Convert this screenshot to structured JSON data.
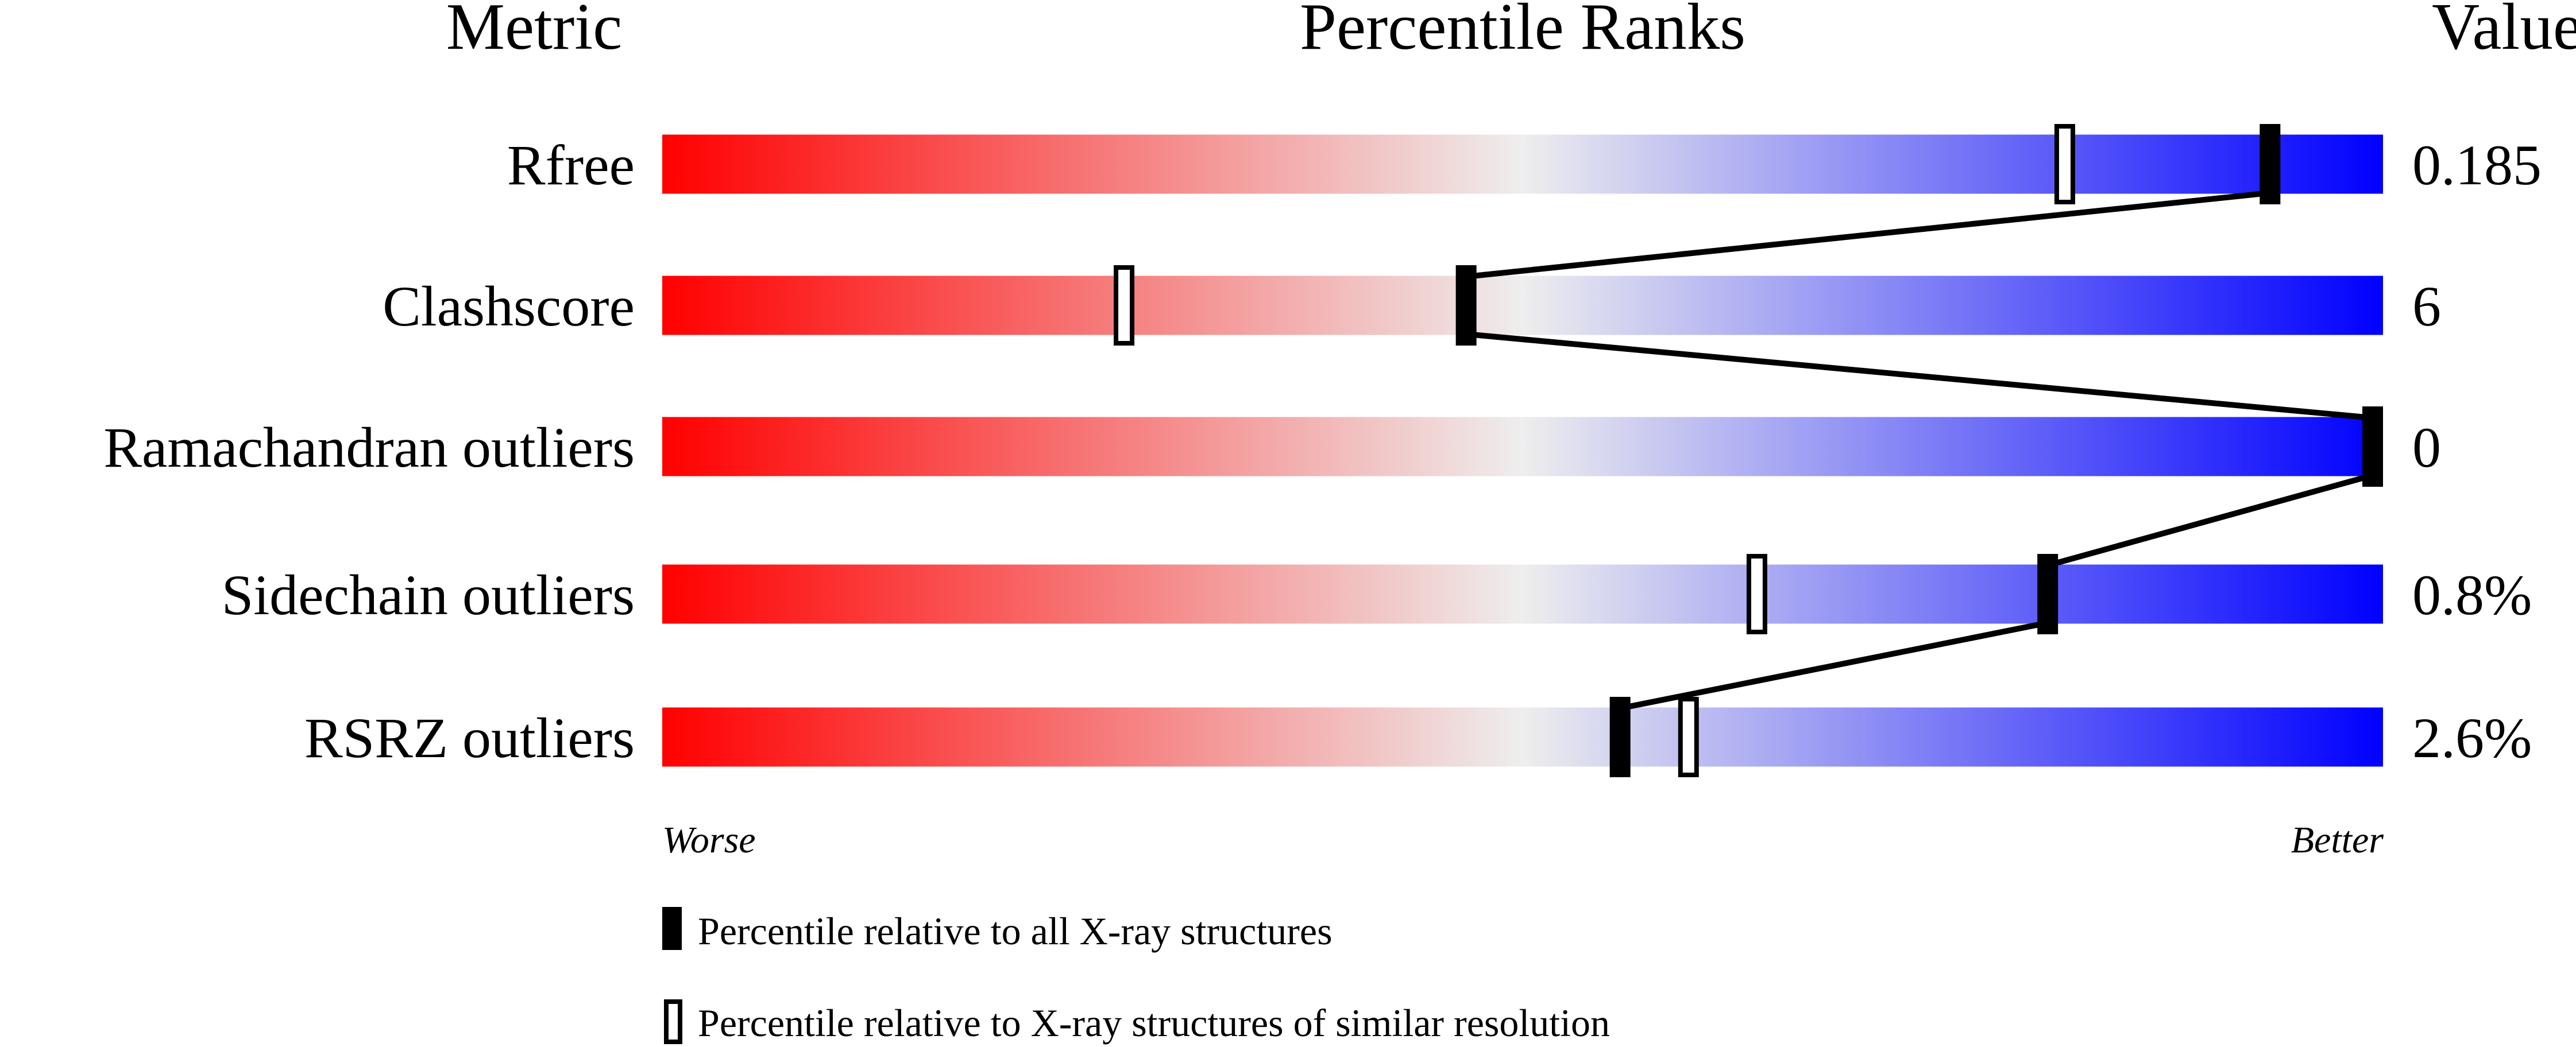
{
  "chart_data": {
    "type": "bar",
    "headers": {
      "metric": "Metric",
      "ranks": "Percentile Ranks",
      "value": "Value"
    },
    "xlim": [
      0,
      100
    ],
    "rows": [
      {
        "metric": "Rfree",
        "value": "0.185",
        "percentile_all": 94,
        "percentile_similar": 82
      },
      {
        "metric": "Clashscore",
        "value": "6",
        "percentile_all": 47,
        "percentile_similar": 27
      },
      {
        "metric": "Ramachandran outliers",
        "value": "0",
        "percentile_all": 100,
        "percentile_similar": 100
      },
      {
        "metric": "Sidechain outliers",
        "value": "0.8%",
        "percentile_all": 81,
        "percentile_similar": 64
      },
      {
        "metric": "RSRZ outliers",
        "value": "2.6%",
        "percentile_all": 56,
        "percentile_similar": 60
      }
    ],
    "axis_labels": {
      "worse": "Worse",
      "better": "Better"
    },
    "legend": {
      "all": "Percentile relative to all X-ray structures",
      "similar": "Percentile relative to X-ray structures of similar resolution"
    },
    "colors": {
      "worse": "#ff0000",
      "middle": "#eeeeee",
      "better": "#0000ff",
      "marker": "#000000"
    }
  }
}
